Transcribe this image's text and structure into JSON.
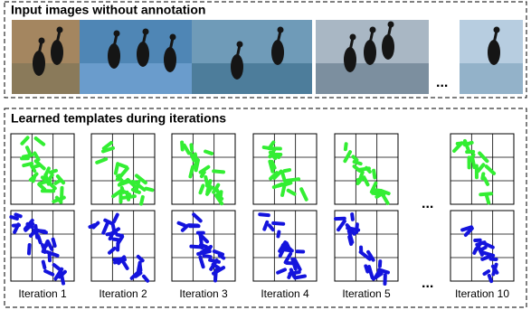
{
  "input_section": {
    "title": "Input images without annotation",
    "ellipsis": "..."
  },
  "template_section": {
    "title": "Learned templates during iterations",
    "row_ellipsis": "...",
    "label_ellipsis": "...",
    "iterations": [
      "Iteration 1",
      "Iteration 2",
      "Iteration 3",
      "Iteration 4",
      "Iteration 5",
      "Iteration 10"
    ]
  }
}
